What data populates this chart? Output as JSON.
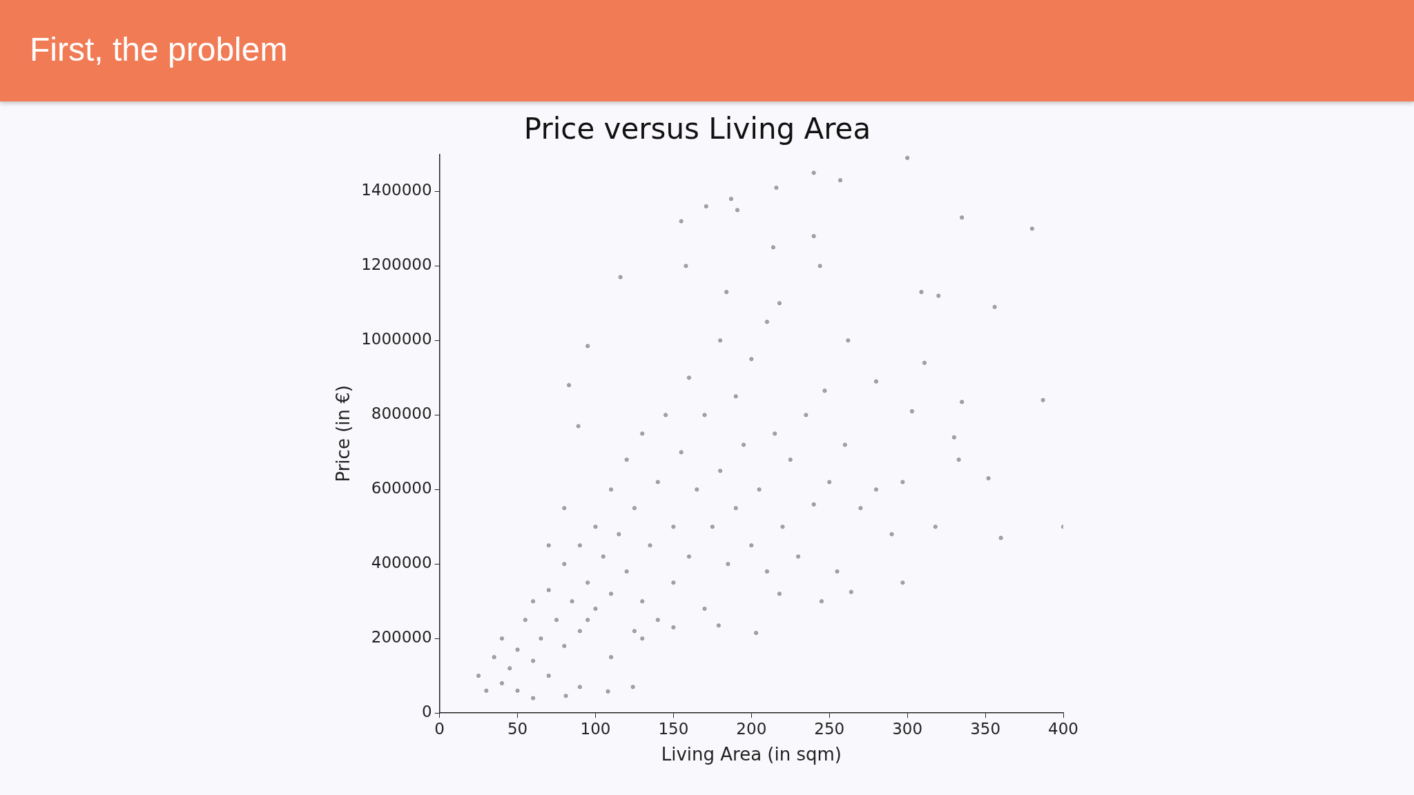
{
  "chart_data": {
    "type": "scatter",
    "title": "Price versus Living Area",
    "xlabel": "Living Area (in sqm)",
    "ylabel": "Price (in €)",
    "annotations": [
      "First, the problem"
    ],
    "xlim": [
      0,
      400
    ],
    "ylim": [
      0,
      1500000
    ],
    "xticks": [
      0,
      50,
      100,
      150,
      200,
      250,
      300,
      350,
      400
    ],
    "yticks": [
      0,
      200000,
      400000,
      600000,
      800000,
      1000000,
      1200000,
      1400000
    ],
    "grid": false,
    "legend": false,
    "marker": "circle",
    "series": [
      {
        "color": "#808080",
        "x": [
          300,
          240,
          257,
          216,
          187,
          191,
          155,
          335,
          380,
          171,
          240,
          214,
          158,
          244,
          116,
          309,
          320,
          356,
          184,
          218,
          262,
          95,
          311,
          387,
          335,
          280,
          247,
          303,
          330,
          333,
          297,
          352,
          400,
          360,
          318,
          297,
          245,
          264,
          218,
          203,
          179,
          124,
          108,
          81,
          25,
          30,
          35,
          40,
          40,
          45,
          50,
          50,
          55,
          60,
          60,
          65,
          70,
          70,
          75,
          80,
          80,
          85,
          90,
          90,
          95,
          100,
          100,
          105,
          110,
          110,
          115,
          120,
          120,
          125,
          130,
          130,
          135,
          140,
          140,
          145,
          150,
          150,
          155,
          160,
          160,
          165,
          170,
          170,
          175,
          180,
          180,
          185,
          190,
          190,
          195,
          200,
          200,
          205,
          210,
          210,
          215,
          220,
          225,
          230,
          235,
          240,
          250,
          255,
          260,
          270,
          280,
          290,
          60,
          90,
          110,
          130,
          150,
          125,
          95,
          70,
          80,
          83,
          89
        ],
        "values": [
          1490000,
          1450000,
          1430000,
          1410000,
          1380000,
          1350000,
          1320000,
          1330000,
          1300000,
          1360000,
          1280000,
          1250000,
          1200000,
          1200000,
          1170000,
          1130000,
          1120000,
          1090000,
          1130000,
          1100000,
          1000000,
          985000,
          940000,
          840000,
          835000,
          890000,
          865000,
          810000,
          740000,
          680000,
          620000,
          630000,
          500000,
          470000,
          500000,
          350000,
          300000,
          325000,
          320000,
          215000,
          235000,
          70000,
          58000,
          46000,
          100000,
          60000,
          150000,
          80000,
          200000,
          120000,
          170000,
          60000,
          250000,
          140000,
          300000,
          200000,
          100000,
          330000,
          250000,
          180000,
          400000,
          300000,
          220000,
          450000,
          350000,
          280000,
          500000,
          420000,
          320000,
          600000,
          480000,
          380000,
          680000,
          550000,
          300000,
          750000,
          450000,
          620000,
          250000,
          800000,
          500000,
          350000,
          700000,
          900000,
          420000,
          600000,
          280000,
          800000,
          500000,
          1000000,
          650000,
          400000,
          850000,
          550000,
          720000,
          450000,
          950000,
          600000,
          1050000,
          380000,
          750000,
          500000,
          680000,
          420000,
          800000,
          560000,
          620000,
          380000,
          720000,
          550000,
          600000,
          480000,
          40000,
          70000,
          150000,
          200000,
          230000,
          220000,
          250000,
          450000,
          550000,
          880000,
          770000
        ]
      }
    ]
  }
}
